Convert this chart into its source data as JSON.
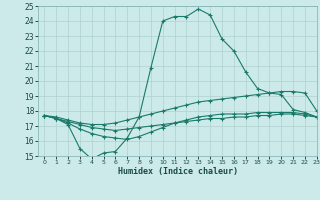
{
  "title": "",
  "xlabel": "Humidex (Indice chaleur)",
  "bg_color": "#cdeaea",
  "grid_color": "#afd0d0",
  "line_color": "#1a7a6a",
  "xlim": [
    -0.5,
    23
  ],
  "ylim": [
    15,
    25
  ],
  "xticks": [
    0,
    1,
    2,
    3,
    4,
    5,
    6,
    7,
    8,
    9,
    10,
    11,
    12,
    13,
    14,
    15,
    16,
    17,
    18,
    19,
    20,
    21,
    22,
    23
  ],
  "yticks": [
    15,
    16,
    17,
    18,
    19,
    20,
    21,
    22,
    23,
    24,
    25
  ],
  "line1_x": [
    0,
    1,
    2,
    3,
    4,
    5,
    6,
    7,
    8,
    9,
    10,
    11,
    12,
    13,
    14,
    15,
    16,
    17,
    18,
    19,
    20,
    21,
    22,
    23
  ],
  "line1_y": [
    17.7,
    17.5,
    17.1,
    15.5,
    14.8,
    15.2,
    15.3,
    16.2,
    17.6,
    20.9,
    24.0,
    24.3,
    24.3,
    24.8,
    24.4,
    22.8,
    22.0,
    20.6,
    19.5,
    19.2,
    19.1,
    18.1,
    17.9,
    17.6
  ],
  "line2_x": [
    0,
    1,
    2,
    3,
    4,
    5,
    6,
    7,
    8,
    9,
    10,
    11,
    12,
    13,
    14,
    15,
    16,
    17,
    18,
    19,
    20,
    21,
    22,
    23
  ],
  "line2_y": [
    17.7,
    17.6,
    17.4,
    17.2,
    17.1,
    17.1,
    17.2,
    17.4,
    17.6,
    17.8,
    18.0,
    18.2,
    18.4,
    18.6,
    18.7,
    18.8,
    18.9,
    19.0,
    19.1,
    19.2,
    19.3,
    19.3,
    19.2,
    18.0
  ],
  "line3_x": [
    0,
    1,
    2,
    3,
    4,
    5,
    6,
    7,
    8,
    9,
    10,
    11,
    12,
    13,
    14,
    15,
    16,
    17,
    18,
    19,
    20,
    21,
    22,
    23
  ],
  "line3_y": [
    17.7,
    17.5,
    17.3,
    17.1,
    16.9,
    16.8,
    16.7,
    16.8,
    16.9,
    17.0,
    17.1,
    17.2,
    17.3,
    17.4,
    17.5,
    17.5,
    17.6,
    17.6,
    17.7,
    17.7,
    17.8,
    17.8,
    17.7,
    17.6
  ],
  "line4_x": [
    0,
    1,
    2,
    3,
    4,
    5,
    6,
    7,
    8,
    9,
    10,
    11,
    12,
    13,
    14,
    15,
    16,
    17,
    18,
    19,
    20,
    21,
    22,
    23
  ],
  "line4_y": [
    17.7,
    17.5,
    17.2,
    16.8,
    16.5,
    16.3,
    16.2,
    16.1,
    16.3,
    16.6,
    16.9,
    17.2,
    17.4,
    17.6,
    17.7,
    17.8,
    17.8,
    17.8,
    17.9,
    17.9,
    17.9,
    17.9,
    17.8,
    17.6
  ]
}
